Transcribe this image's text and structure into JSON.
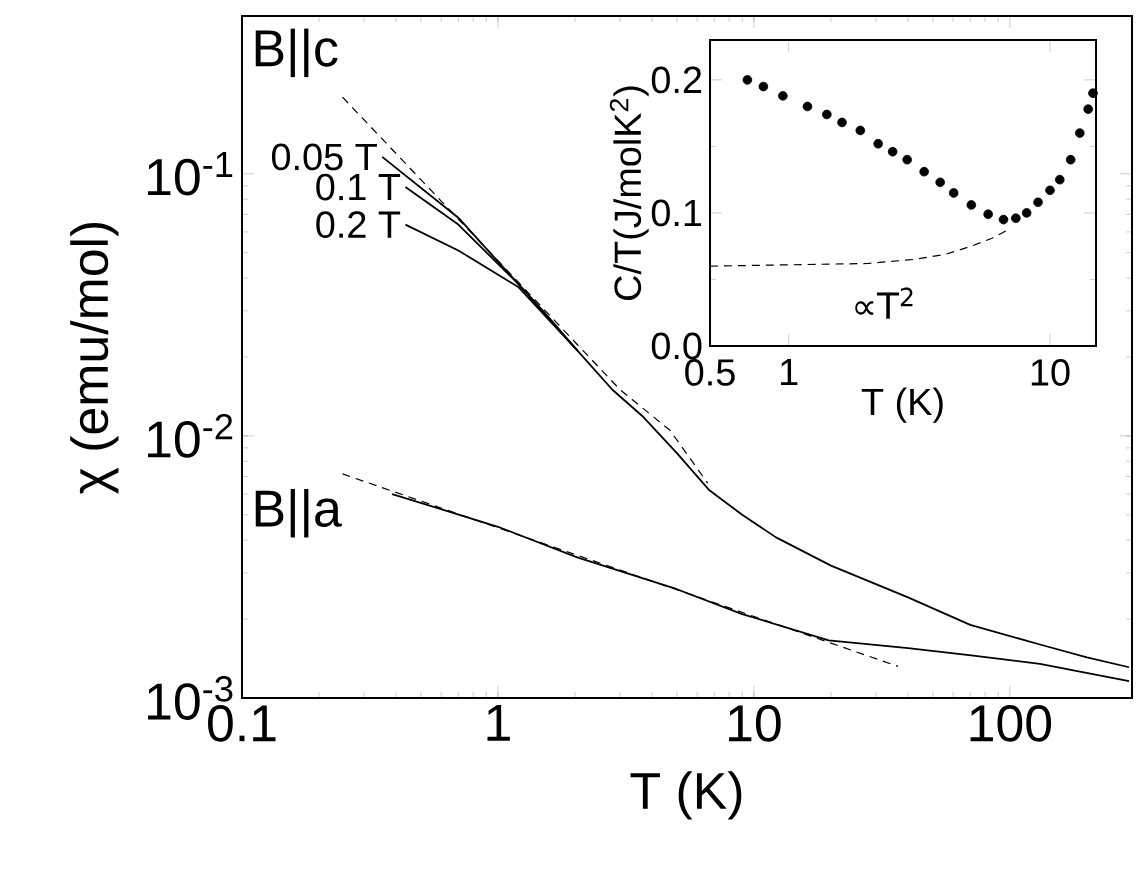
{
  "chart_data": [
    {
      "type": "line",
      "xlabel": "T (K)",
      "ylabel": "χ (emu/mol)",
      "log": "xy",
      "xlim": [
        0.1,
        300
      ],
      "ylim": [
        0.001,
        0.4
      ],
      "xticks": [
        0.1,
        1,
        10,
        100
      ],
      "yticks": [
        {
          "value": 0.001,
          "label": "10$^{-3}$"
        },
        {
          "value": 0.01,
          "label": "10$^{-2}$"
        },
        {
          "value": 0.1,
          "label": "10$^{-1}$"
        }
      ],
      "legend": false,
      "grid": false,
      "annotations": [
        "B||c",
        "B||a"
      ],
      "series": [
        {
          "color": "#000000",
          "line_style": "dashed",
          "x": [
            0.247,
            0.505,
            1,
            3,
            4.7,
            6.6
          ],
          "values": [
            0.196,
            0.094,
            0.0466,
            0.015,
            0.0105,
            0.0066
          ]
        },
        {
          "name": "0.05 T",
          "color": "#000000",
          "line_style": "solid",
          "x": [
            0.353,
            0.7,
            1.2,
            1.5,
            2.04,
            2.8,
            3.7,
            5,
            6.7,
            9,
            12.2,
            20,
            40,
            70,
            131,
            200,
            292
          ],
          "values": [
            0.116,
            0.068,
            0.038,
            0.03,
            0.0212,
            0.015,
            0.0118,
            0.0086,
            0.0062,
            0.005,
            0.0041,
            0.0032,
            0.00242,
            0.0019,
            0.0016,
            0.00143,
            0.00131
          ]
        },
        {
          "name": "0.1 T",
          "color": "#000000",
          "line_style": "solid",
          "x": [
            0.435,
            0.7,
            1.2,
            2.04
          ],
          "values": [
            0.089,
            0.064,
            0.038,
            0.0212
          ]
        },
        {
          "name": "0.2 T",
          "color": "#000000",
          "line_style": "solid",
          "x": [
            0.435,
            0.7,
            1.2,
            2.04
          ],
          "values": [
            0.064,
            0.051,
            0.037,
            0.0212
          ]
        },
        {
          "color": "#000000",
          "line_style": "solid",
          "x": [
            0.386,
            1,
            2.04,
            5,
            9,
            19.6,
            40,
            72,
            131,
            292
          ],
          "values": [
            0.006,
            0.0045,
            0.00344,
            0.0026,
            0.00209,
            0.00166,
            0.00155,
            0.00145,
            0.00135,
            0.00116
          ]
        },
        {
          "color": "#000000",
          "line_style": "dashed",
          "x": [
            0.247,
            36.6
          ],
          "values": [
            0.00716,
            0.00132
          ]
        }
      ]
    },
    {
      "type": "scatter",
      "xlabel": "T (K)",
      "ylabel": "C/T(J/molK$^{2}$)",
      "log": "x",
      "xlim": [
        0.5,
        15
      ],
      "ylim": [
        0,
        0.23
      ],
      "xticks": [
        0.5,
        1,
        10
      ],
      "yticks": [
        {
          "value": 0,
          "label": "0.0"
        },
        0.1,
        0.2
      ],
      "legend": false,
      "grid": false,
      "annotations": [
        "∝T$^{2}$"
      ],
      "series": [
        {
          "color": "#000000",
          "marker": "circle",
          "x": [
            0.695,
            0.8,
            0.95,
            1.18,
            1.4,
            1.6,
            1.88,
            2.2,
            2.5,
            2.84,
            3.3,
            3.8,
            4.28,
            5,
            5.8,
            6.64,
            7.4,
            8.14,
            9,
            10,
            10.9,
            12,
            13,
            14,
            14.6
          ],
          "values": [
            0.2,
            0.195,
            0.188,
            0.18,
            0.174,
            0.168,
            0.162,
            0.152,
            0.146,
            0.14,
            0.131,
            0.123,
            0.115,
            0.106,
            0.099,
            0.095,
            0.096,
            0.1,
            0.108,
            0.117,
            0.125,
            0.14,
            0.16,
            0.178,
            0.19
          ]
        },
        {
          "type": "line",
          "color": "#000000",
          "line_style": "dashed",
          "x": [
            0.5,
            1,
            2,
            3,
            4,
            5,
            6,
            7
          ],
          "values": [
            0.06,
            0.061,
            0.062,
            0.065,
            0.069,
            0.075,
            0.081,
            0.088
          ]
        }
      ]
    }
  ]
}
